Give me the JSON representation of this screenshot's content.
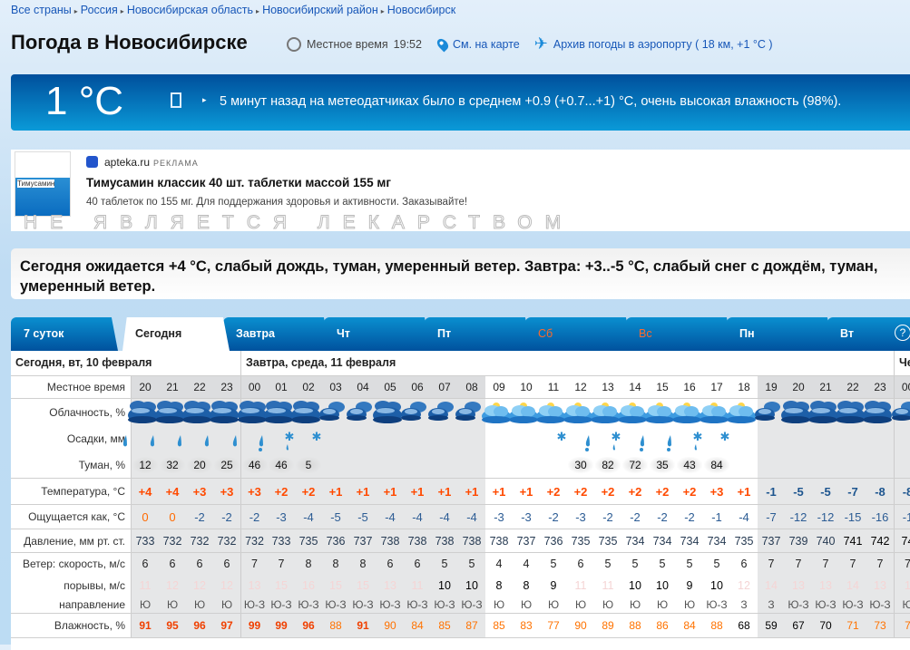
{
  "breadcrumbs": [
    "Все страны",
    "Россия",
    "Новосибирская область",
    "Новосибирский район",
    "Новосибирск"
  ],
  "title": "Погода в Новосибирске",
  "local_time_label": "Местное время",
  "local_time": "19:52",
  "map_link": "См. на карте",
  "airport_link": "Архив погоды в аэропорту ( 18 км, +1 °C )",
  "current": {
    "temp": "1 °C",
    "message": "5 минут назад на метеодатчиках было в среднем +0.9 (+0.7...+1) °C, очень высокая влажность (98%)."
  },
  "ad": {
    "source": "apteka.ru",
    "label": "РЕКЛАМА",
    "headline": "Тимусамин классик 40 шт. таблетки массой 155 мг",
    "description": "40 таблеток по 155 мг. Для поддержания здоровья и активности. Заказывайте!",
    "product_name": "Тимусамин",
    "watermark": "НЕ ЯВЛЯЕТСЯ ЛЕКАРСТВОМ"
  },
  "summary": "Сегодня ожидается +4 °C, слабый дождь, туман, умеренный ветер. Завтра: +3..-5 °C, слабый снег с дождём, туман, умеренный ветер.",
  "tabs": [
    {
      "label": "7 суток"
    },
    {
      "label": "Сегодня",
      "active": true
    },
    {
      "label": "Завтра"
    },
    {
      "label": "Чт"
    },
    {
      "label": "Пт"
    },
    {
      "label": "Сб",
      "weekend": true
    },
    {
      "label": "Вс",
      "weekend": true
    },
    {
      "label": "Пн"
    },
    {
      "label": "Вт"
    }
  ],
  "help_label": "?",
  "days": [
    {
      "label": "Сегодня, вт, 10 февраля",
      "hours": 4
    },
    {
      "label": "Завтра, среда, 11 февраля",
      "hours": 24
    },
    {
      "label": "Че",
      "hours": 1
    }
  ],
  "row_labels": {
    "time": "Местное время",
    "clouds": "Облачность, %",
    "precip": "Осадки, мм",
    "fog": "Туман, %",
    "temp": "Температура, °C",
    "feels": "Ощущается как, °C",
    "pressure": "Давление, мм рт. ст.",
    "wind": "Ветер: скорость, м/с",
    "gusts": "порывы, м/с",
    "direction": "направление",
    "humidity": "Влажность, %"
  },
  "hours": [
    "20",
    "21",
    "22",
    "23",
    "00",
    "01",
    "02",
    "03",
    "04",
    "05",
    "06",
    "07",
    "08",
    "09",
    "10",
    "11",
    "12",
    "13",
    "14",
    "15",
    "16",
    "17",
    "18",
    "19",
    "20",
    "21",
    "22",
    "23",
    "00"
  ],
  "night": [
    1,
    1,
    1,
    1,
    1,
    1,
    1,
    1,
    1,
    1,
    1,
    1,
    1,
    0,
    0,
    0,
    0,
    0,
    0,
    0,
    0,
    0,
    0,
    1,
    1,
    1,
    1,
    1,
    1
  ],
  "clouds": [
    "overcast",
    "overcast",
    "overcast",
    "overcast",
    "overcast",
    "overcast",
    "overcast",
    "partly-night",
    "partly-night",
    "overcast",
    "partly-night",
    "partly-night",
    "partly-night",
    "cloudy-day",
    "cloudy-day",
    "cloudy-day",
    "cloudy-day",
    "cloudy-day",
    "cloudy-day",
    "cloudy-day",
    "cloudy-day",
    "cloudy-day",
    "cloudy-day",
    "partly-night",
    "overcast",
    "overcast",
    "overcast",
    "overcast",
    "partly-night"
  ],
  "precip": [
    "rain",
    "rain",
    "rain",
    "rain",
    "rain",
    "rain-snow",
    "snow-rain",
    "snow",
    "",
    "",
    "",
    "",
    "",
    "",
    "",
    "",
    "snow",
    "rain-snow",
    "snow-rain",
    "rain-snow",
    "rain-snow",
    "snow-rain",
    "snow",
    "",
    "",
    "",
    "",
    "",
    ""
  ],
  "fog": [
    "12",
    "32",
    "20",
    "25",
    "46",
    "46",
    "5",
    "",
    "",
    "",
    "",
    "",
    "",
    "",
    "",
    "",
    "30",
    "82",
    "72",
    "35",
    "43",
    "84",
    "",
    "",
    "",
    "",
    "",
    "",
    ""
  ],
  "temp": [
    "+4",
    "+4",
    "+3",
    "+3",
    "+3",
    "+2",
    "+2",
    "+1",
    "+1",
    "+1",
    "+1",
    "+1",
    "+1",
    "+1",
    "+1",
    "+2",
    "+2",
    "+2",
    "+2",
    "+2",
    "+2",
    "+3",
    "+1",
    "-1",
    "-5",
    "-5",
    "-7",
    "-8",
    "-8"
  ],
  "feels": [
    "0",
    "0",
    "-2",
    "-2",
    "-2",
    "-3",
    "-4",
    "-5",
    "-5",
    "-4",
    "-4",
    "-4",
    "-4",
    "-3",
    "-3",
    "-2",
    "-3",
    "-2",
    "-2",
    "-2",
    "-2",
    "-1",
    "-4",
    "-7",
    "-12",
    "-12",
    "-15",
    "-16",
    "-1"
  ],
  "pressure": [
    "733",
    "732",
    "732",
    "732",
    "732",
    "733",
    "735",
    "736",
    "737",
    "738",
    "738",
    "738",
    "738",
    "738",
    "737",
    "736",
    "735",
    "735",
    "734",
    "734",
    "734",
    "734",
    "735",
    "737",
    "739",
    "740",
    "741",
    "742",
    "74"
  ],
  "pressure_bold": [
    0,
    0,
    0,
    0,
    0,
    0,
    0,
    0,
    0,
    0,
    0,
    0,
    0,
    0,
    0,
    0,
    0,
    0,
    0,
    0,
    0,
    0,
    0,
    0,
    0,
    0,
    1,
    1,
    1
  ],
  "wind": [
    "6",
    "6",
    "6",
    "6",
    "7",
    "7",
    "8",
    "8",
    "8",
    "6",
    "6",
    "5",
    "5",
    "4",
    "4",
    "5",
    "6",
    "5",
    "5",
    "5",
    "5",
    "5",
    "6",
    "7",
    "7",
    "7",
    "7",
    "7",
    "7"
  ],
  "gusts": [
    "11",
    "12",
    "12",
    "12",
    "13",
    "15",
    "16",
    "15",
    "15",
    "13",
    "11",
    "10",
    "10",
    "8",
    "8",
    "9",
    "11",
    "11",
    "10",
    "10",
    "9",
    "10",
    "12",
    "14",
    "13",
    "13",
    "14",
    "13",
    "1"
  ],
  "gusts_strong": [
    0,
    0,
    0,
    0,
    0,
    0,
    0,
    0,
    0,
    0,
    0,
    1,
    1,
    1,
    1,
    1,
    0,
    0,
    1,
    1,
    1,
    1,
    0,
    0,
    0,
    0,
    0,
    0,
    0
  ],
  "direction": [
    "Ю",
    "Ю",
    "Ю",
    "Ю",
    "Ю-З",
    "Ю-З",
    "Ю-З",
    "Ю-З",
    "Ю-З",
    "Ю-З",
    "Ю-З",
    "Ю-З",
    "Ю-З",
    "Ю",
    "Ю",
    "Ю",
    "Ю",
    "Ю",
    "Ю",
    "Ю",
    "Ю",
    "Ю-З",
    "З",
    "З",
    "Ю-З",
    "Ю-З",
    "Ю-З",
    "Ю-З",
    "Ю"
  ],
  "humidity": [
    "91",
    "95",
    "96",
    "97",
    "99",
    "99",
    "96",
    "88",
    "91",
    "90",
    "84",
    "85",
    "87",
    "85",
    "83",
    "77",
    "90",
    "89",
    "88",
    "86",
    "84",
    "88",
    "68",
    "59",
    "67",
    "70",
    "71",
    "73",
    "7"
  ],
  "colors": {
    "accent": "#1757b8",
    "temp_positive": "#ff4a00",
    "temp_negative": "#1d558f",
    "weekend": "#ff6a2a"
  }
}
